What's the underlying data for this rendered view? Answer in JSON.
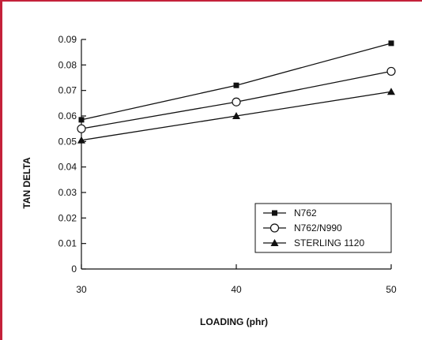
{
  "chart_data": {
    "type": "line",
    "title": "",
    "xlabel": "LOADING (phr)",
    "ylabel": "TAN DELTA",
    "xlim": [
      30,
      50
    ],
    "ylim": [
      0,
      0.09
    ],
    "x_ticks": [
      "30",
      "40",
      "50"
    ],
    "y_ticks": [
      "0",
      "0.01",
      "0.02",
      "0.03",
      "0.04",
      "0.05",
      "0.06",
      "0.07",
      "0.08",
      "0.09"
    ],
    "grid": false,
    "legend_position": "bottom-right",
    "series": [
      {
        "name": "N762",
        "marker": "filled-square",
        "x": [
          30,
          40,
          50
        ],
        "y": [
          0.0585,
          0.072,
          0.0885
        ]
      },
      {
        "name": "N762/N990",
        "marker": "open-circle",
        "x": [
          30,
          40,
          50
        ],
        "y": [
          0.055,
          0.0655,
          0.0775
        ]
      },
      {
        "name": "STERLING 1120",
        "marker": "filled-triangle",
        "x": [
          30,
          40,
          50
        ],
        "y": [
          0.0505,
          0.06,
          0.0695
        ]
      }
    ]
  },
  "colors": {
    "frame_border": "#c4213a",
    "ink": "#111111"
  }
}
